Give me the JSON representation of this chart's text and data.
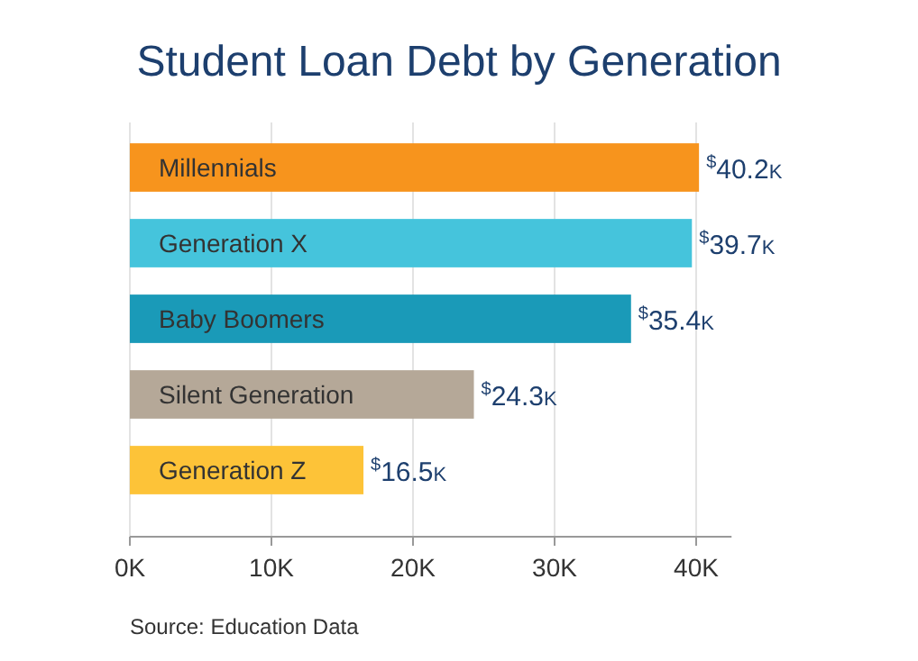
{
  "chart_data": {
    "type": "bar",
    "orientation": "horizontal",
    "title": "Student Loan Debt by Generation",
    "categories": [
      "Millennials",
      "Generation X",
      "Baby Boomers",
      "Silent Generation",
      "Generation Z"
    ],
    "values": [
      40.2,
      39.7,
      35.4,
      24.3,
      16.5
    ],
    "colors": [
      "#f7941d",
      "#45c4dc",
      "#1a9ab8",
      "#b5a898",
      "#fdc338"
    ],
    "value_labels": [
      "$^{$}$40.2K",
      "$^{$}$39.7K",
      "$^{$}$35.4K",
      "$^{$}$24.3K",
      "$^{$}$16.5K"
    ],
    "xlim": [
      0,
      42.5
    ],
    "xticks": [
      {
        "value": 0,
        "label": "0K"
      },
      {
        "value": 10,
        "label": "10K"
      },
      {
        "value": 20,
        "label": "20K"
      },
      {
        "value": 30,
        "label": "30K"
      },
      {
        "value": 40,
        "label": "40K"
      }
    ],
    "grid": "x",
    "annotations": [
      "Source: Education Data"
    ]
  }
}
